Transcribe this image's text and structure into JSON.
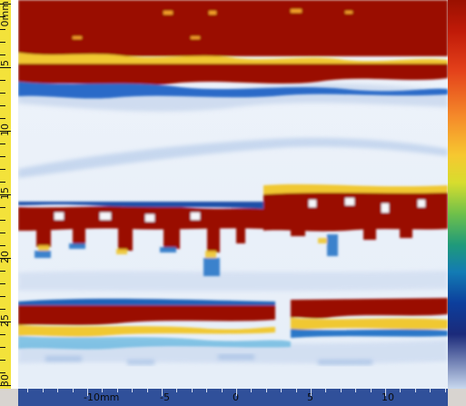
{
  "window": {
    "title": ""
  },
  "left_ruler": {
    "unit": "mm",
    "labels": [
      "0mm",
      "5",
      "10",
      "15",
      "20",
      "25",
      "30"
    ]
  },
  "bottom_ruler": {
    "labels": [
      "-10mm",
      "-5",
      "0",
      "5",
      "10"
    ]
  },
  "colorbar": {
    "top_color": "#9a1000",
    "bottom_color": "#c8d8ee"
  },
  "colors": {
    "accent_red": "#9a1000",
    "ruler_yellow": "#f3e23a",
    "ruler_blue": "#30509a"
  }
}
